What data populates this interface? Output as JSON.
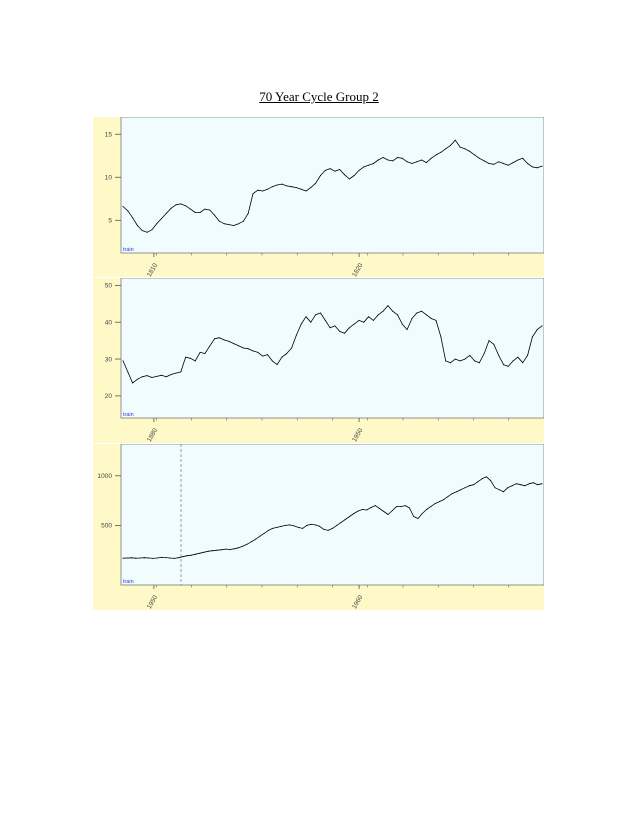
{
  "page": {
    "title": "70 Year Cycle Group 2"
  },
  "chart_data": [
    {
      "type": "line",
      "title": "",
      "grid": false,
      "train_label": "train",
      "x_ticks": [
        "1810",
        "1820"
      ],
      "y_ticks": [
        5,
        10,
        15
      ],
      "ylim": [
        1.2,
        17.0
      ],
      "colors": {
        "background": "#fff9c8",
        "plot": "#f0fcfe",
        "line": "#000000"
      },
      "series": [
        {
          "values": [
            6.6,
            6.1,
            5.3,
            4.4,
            3.8,
            3.6,
            3.9,
            4.6,
            5.2,
            5.8,
            6.4,
            6.8,
            6.9,
            6.7,
            6.3,
            5.9,
            5.9,
            6.3,
            6.2,
            5.6,
            4.9,
            4.6,
            4.5,
            4.4,
            4.6,
            4.9,
            5.8,
            8.1,
            8.5,
            8.4,
            8.6,
            8.9,
            9.1,
            9.2,
            9.0,
            8.9,
            8.8,
            8.6,
            8.4,
            8.8,
            9.3,
            10.2,
            10.8,
            11.0,
            10.7,
            10.9,
            10.3,
            9.8,
            10.2,
            10.8,
            11.2,
            11.4,
            11.6,
            12.0,
            12.3,
            12.0,
            11.9,
            12.3,
            12.2,
            11.8,
            11.6,
            11.8,
            12.0,
            11.7,
            12.2,
            12.6,
            12.9,
            13.3,
            13.7,
            14.3,
            13.5,
            13.3,
            13.0,
            12.6,
            12.2,
            11.9,
            11.6,
            11.5,
            11.8,
            11.6,
            11.4,
            11.7,
            12.0,
            12.2,
            11.6,
            11.2,
            11.1,
            11.3
          ]
        }
      ]
    },
    {
      "type": "line",
      "title": "",
      "grid": false,
      "train_label": "train",
      "x_ticks": [
        "1880",
        "1950"
      ],
      "y_ticks": [
        20,
        30,
        40,
        50
      ],
      "ylim": [
        14,
        52
      ],
      "colors": {
        "background": "#fff9c8",
        "plot": "#f0fcfe",
        "line": "#000000"
      },
      "series": [
        {
          "values": [
            29.5,
            26.5,
            23.5,
            24.5,
            25.2,
            25.5,
            25.0,
            25.3,
            25.6,
            25.2,
            25.8,
            26.2,
            26.5,
            30.5,
            30.2,
            29.5,
            31.8,
            31.5,
            33.5,
            35.5,
            35.8,
            35.2,
            34.8,
            34.2,
            33.6,
            33.0,
            32.8,
            32.2,
            31.8,
            30.8,
            31.2,
            29.5,
            28.5,
            30.5,
            31.5,
            33.0,
            36.5,
            39.5,
            41.5,
            40.0,
            42.0,
            42.5,
            40.5,
            38.5,
            39.0,
            37.5,
            37.0,
            38.5,
            39.5,
            40.5,
            40.0,
            41.5,
            40.5,
            42.0,
            43.0,
            44.5,
            43.0,
            42.0,
            39.5,
            38.0,
            41.0,
            42.5,
            43.0,
            42.0,
            41.0,
            40.5,
            36.0,
            29.5,
            29.0,
            30.0,
            29.5,
            30.0,
            31.0,
            29.5,
            29.0,
            31.5,
            35.0,
            34.0,
            31.0,
            28.5,
            28.0,
            29.5,
            30.5,
            29.0,
            31.0,
            36.0,
            38.0,
            39.0
          ]
        }
      ]
    },
    {
      "type": "line",
      "title": "",
      "grid": false,
      "train_label": "train",
      "x_ticks": [
        "1950",
        "1960"
      ],
      "y_ticks": [
        500,
        1000
      ],
      "ylim": [
        -100,
        1320
      ],
      "colors": {
        "background": "#fff9c8",
        "plot": "#f0fcfe",
        "line": "#000000",
        "highlight_tick": "#cc0000"
      },
      "series": [
        {
          "values": [
            170,
            172,
            174,
            170,
            172,
            175,
            172,
            168,
            172,
            178,
            176,
            172,
            168,
            175,
            185,
            195,
            200,
            210,
            220,
            230,
            240,
            245,
            250,
            255,
            262,
            258,
            265,
            275,
            290,
            310,
            335,
            360,
            390,
            420,
            450,
            470,
            480,
            490,
            500,
            505,
            495,
            480,
            470,
            500,
            510,
            505,
            490,
            460,
            450,
            470,
            500,
            530,
            560,
            590,
            620,
            645,
            660,
            655,
            680,
            700,
            670,
            640,
            610,
            650,
            690,
            690,
            700,
            675,
            590,
            570,
            620,
            660,
            690,
            720,
            740,
            760,
            790,
            820,
            840,
            860,
            880,
            900,
            910,
            940,
            970,
            990,
            950,
            880,
            860,
            840,
            880,
            900,
            920,
            910,
            900,
            920,
            930,
            910,
            920
          ]
        }
      ]
    }
  ]
}
